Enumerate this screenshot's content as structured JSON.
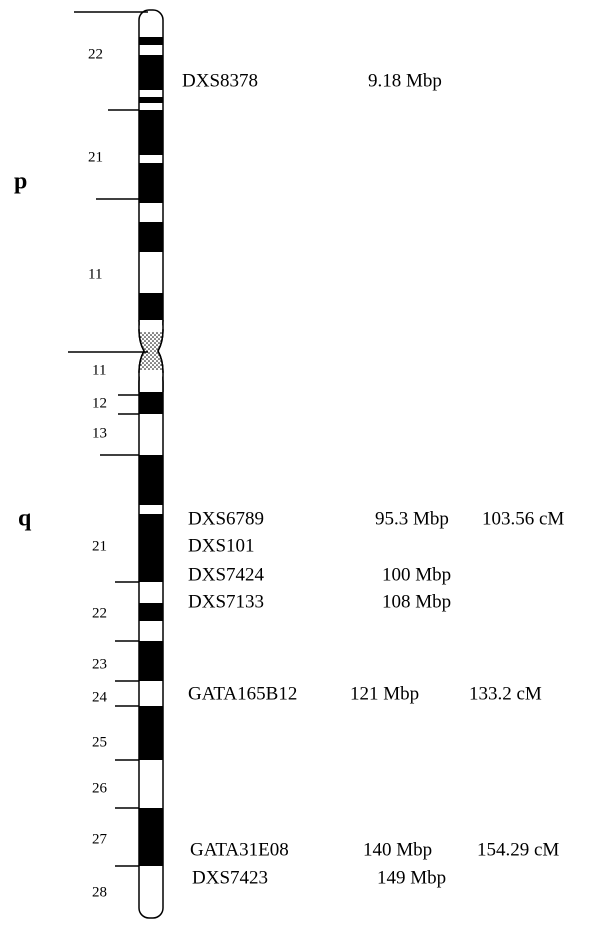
{
  "arms": {
    "p": "p",
    "q": "q"
  },
  "bands": {
    "p": [
      "22",
      "21",
      "11"
    ],
    "q": [
      "11",
      "12",
      "13",
      "21",
      "22",
      "23",
      "24",
      "25",
      "26",
      "27",
      "28"
    ]
  },
  "markers": [
    {
      "name": "DXS8378",
      "position": "9.18 Mbp"
    },
    {
      "name": "DXS6789",
      "position": "95.3 Mbp",
      "cm": "103.56 cM"
    },
    {
      "name": "DXS101"
    },
    {
      "name": "DXS7424",
      "position": "100 Mbp"
    },
    {
      "name": "DXS7133",
      "position": "108 Mbp"
    },
    {
      "name": "GATA165B12",
      "position": "121 Mbp",
      "cm": "133.2 cM"
    },
    {
      "name": "GATA31E08",
      "position": "140 Mbp",
      "cm": "154.29 cM"
    },
    {
      "name": "DXS7423",
      "position": "149 Mbp"
    }
  ]
}
